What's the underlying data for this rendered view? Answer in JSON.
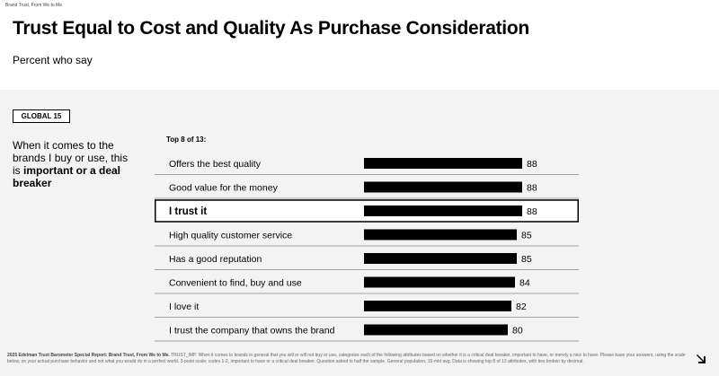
{
  "header": {
    "breadcrumb": "Brand Trust, From We to Me",
    "title": "Trust Equal to Cost and Quality As Purchase Consideration",
    "subtitle": "Percent who say"
  },
  "badge": "GLOBAL 15",
  "lead": {
    "part1": "When it comes to the brands I buy or use, this is ",
    "bold": "important or a deal breaker"
  },
  "chart_data": {
    "type": "bar",
    "orientation": "horizontal",
    "title": "Top 8 of 13:",
    "categories": [
      "Offers the best quality",
      "Good value for the money",
      "I trust it",
      "High quality customer service",
      "Has a good reputation",
      "Convenient to find, buy and use",
      "I love it",
      "I trust the company that owns the brand"
    ],
    "values": [
      88,
      88,
      88,
      85,
      85,
      84,
      82,
      80
    ],
    "highlight_index": 2,
    "xlim": [
      0,
      100
    ],
    "bar_color": "#000000",
    "highlight_border": "#000000"
  },
  "footnote": {
    "source": "2025 Edelman Trust Barometer Special Report: Brand Trust, From We to Me.",
    "text": "TRUST_IMP. When it comes to brands in general that you will or will not buy or use, categorize each of the following attributes based on whether it is a critical deal breaker, important to have, or merely a nice to have. Please base your answers, using the scale below, on your actual purchase behavior and not what you would do in a perfect world. 3-point scale; codes 1-2, important to have or a critical deal breaker. Question asked to half the sample. General population, 15-mkt avg. Data is showing top 8 of 13 attributes, with ties broken by decimal."
  },
  "icons": {
    "next": "arrow-right-icon"
  }
}
